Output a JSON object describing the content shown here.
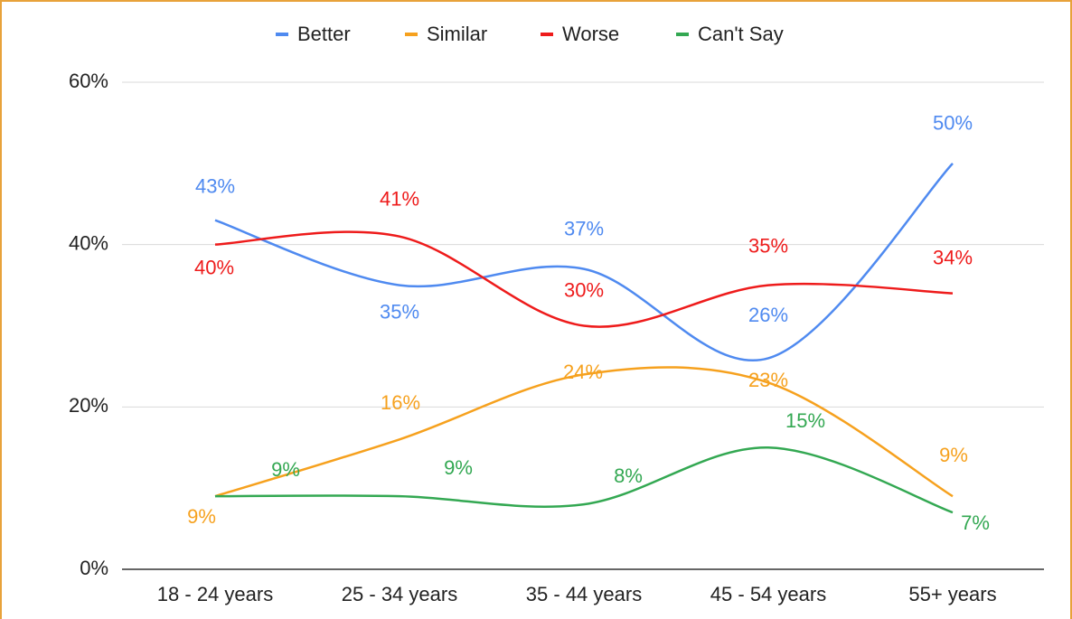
{
  "chart_data": {
    "type": "line",
    "categories": [
      "18 - 24 years",
      "25 - 34 years",
      "35 - 44 years",
      "45 - 54 years",
      "55+ years"
    ],
    "series": [
      {
        "name": "Better",
        "color": "#4f8af0",
        "values": [
          43,
          35,
          37,
          26,
          50
        ],
        "value_labels": [
          "43%",
          "35%",
          "37%",
          "26%",
          "50%"
        ]
      },
      {
        "name": "Similar",
        "color": "#f6a11e",
        "values": [
          9,
          16,
          24,
          23,
          9
        ],
        "value_labels": [
          "9%",
          "16%",
          "24%",
          "23%",
          "9%"
        ]
      },
      {
        "name": "Worse",
        "color": "#ee1b1b",
        "values": [
          40,
          41,
          30,
          35,
          34
        ],
        "value_labels": [
          "40%",
          "41%",
          "30%",
          "35%",
          "34%"
        ]
      },
      {
        "name": "Can't Say",
        "color": "#33a852",
        "values": [
          9,
          9,
          8,
          15,
          7
        ],
        "value_labels": [
          "9%",
          "9%",
          "8%",
          "15%",
          "7%"
        ]
      }
    ],
    "ylim": [
      0,
      60
    ],
    "yticks": [
      {
        "value": 0,
        "label": "0%"
      },
      {
        "value": 20,
        "label": "20%"
      },
      {
        "value": 40,
        "label": "40%"
      },
      {
        "value": 60,
        "label": "60%"
      }
    ],
    "grid": true,
    "legend": "top"
  }
}
